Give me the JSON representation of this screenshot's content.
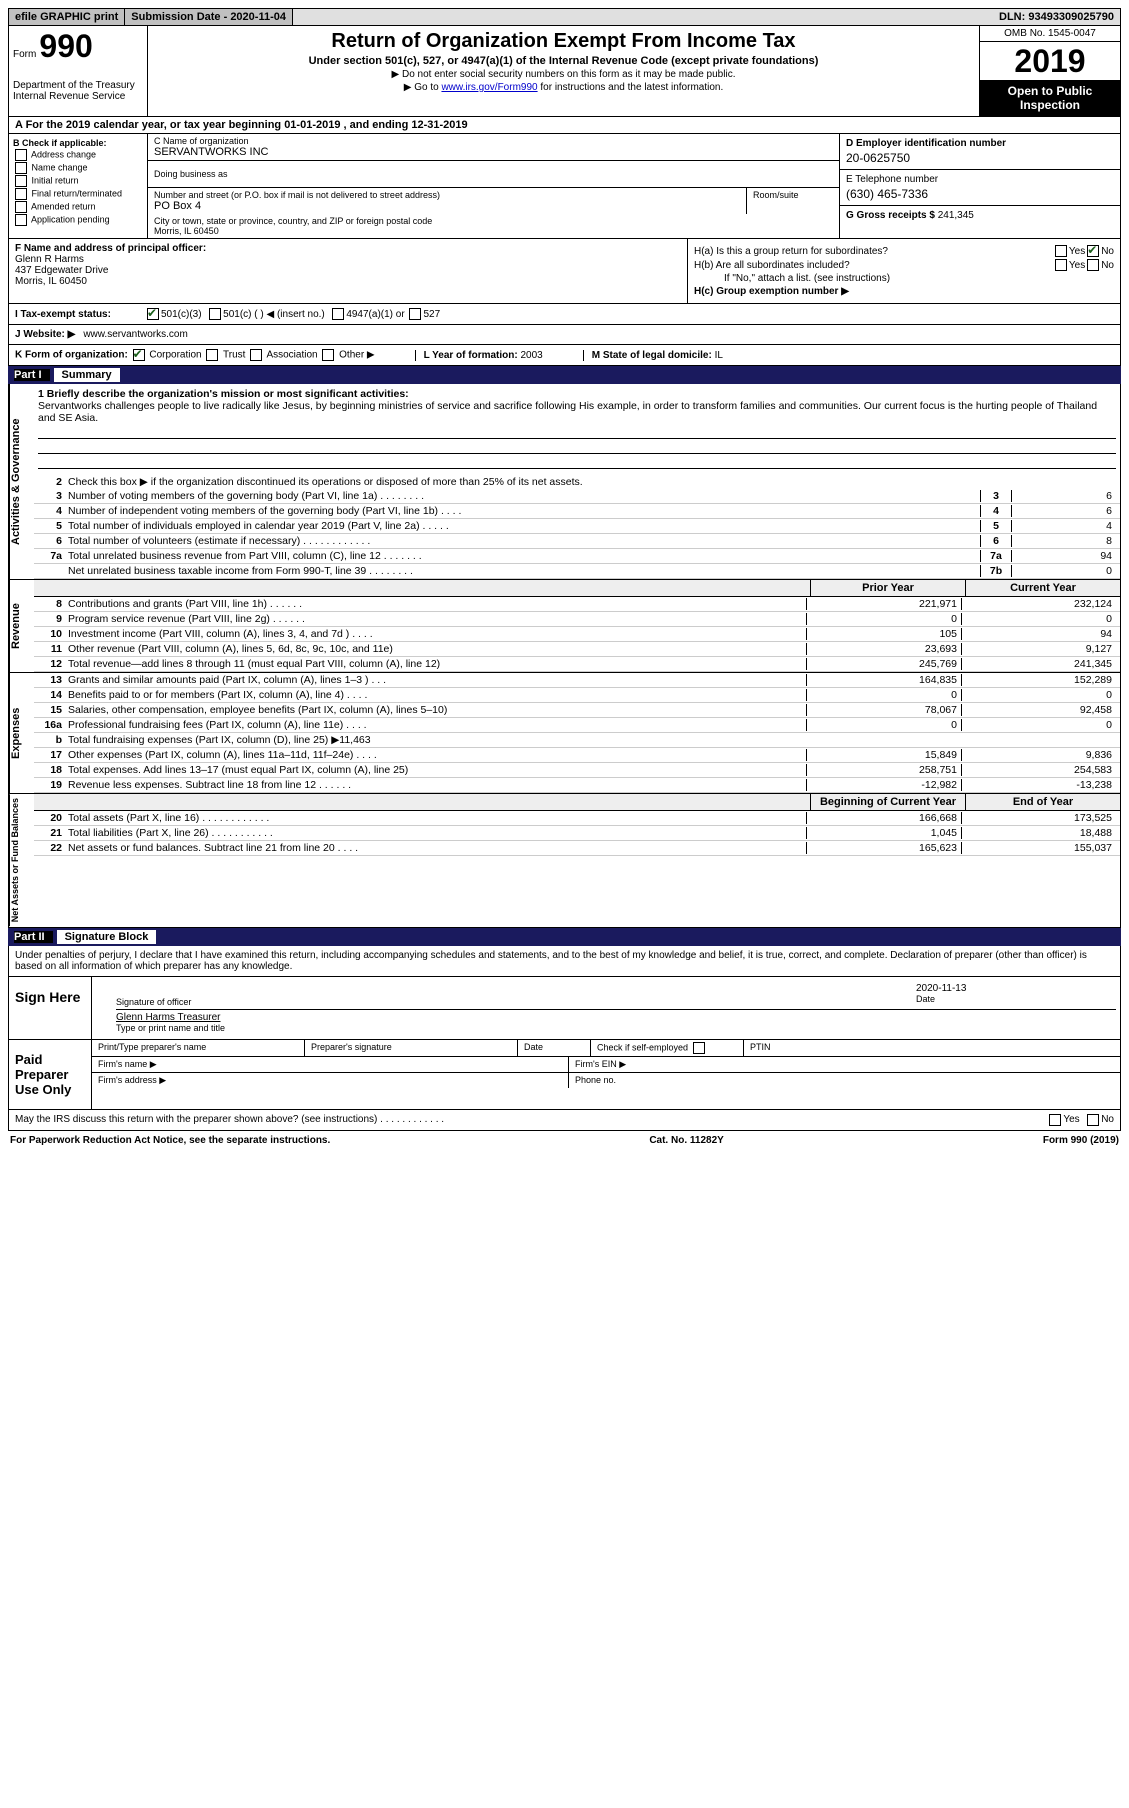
{
  "topbar": {
    "efile": "efile GRAPHIC print",
    "submission_label": "Submission Date - 2020-11-04",
    "dln": "DLN: 93493309025790"
  },
  "header": {
    "form_label": "Form",
    "form_number": "990",
    "dept": "Department of the Treasury\nInternal Revenue Service",
    "title": "Return of Organization Exempt From Income Tax",
    "subtitle": "Under section 501(c), 527, or 4947(a)(1) of the Internal Revenue Code (except private foundations)",
    "note1": "▶ Do not enter social security numbers on this form as it may be made public.",
    "note2_pre": "▶ Go to ",
    "note2_link": "www.irs.gov/Form990",
    "note2_post": " for instructions and the latest information.",
    "omb": "OMB No. 1545-0047",
    "year": "2019",
    "open": "Open to Public Inspection"
  },
  "period": "A For the 2019 calendar year, or tax year beginning 01-01-2019  , and ending 12-31-2019",
  "section_b": {
    "label": "B Check if applicable:",
    "opts": [
      "Address change",
      "Name change",
      "Initial return",
      "Final return/terminated",
      "Amended return",
      "Application pending"
    ]
  },
  "section_c": {
    "name_label": "C Name of organization",
    "name": "SERVANTWORKS INC",
    "dba_label": "Doing business as",
    "street_label": "Number and street (or P.O. box if mail is not delivered to street address)",
    "street": "PO Box 4",
    "room_label": "Room/suite",
    "city_label": "City or town, state or province, country, and ZIP or foreign postal code",
    "city": "Morris, IL  60450"
  },
  "section_d": {
    "ein_label": "D Employer identification number",
    "ein": "20-0625750",
    "phone_label": "E Telephone number",
    "phone": "(630) 465-7336",
    "gross_label": "G Gross receipts $",
    "gross": "241,345"
  },
  "section_f": {
    "label": "F  Name and address of principal officer:",
    "name": "Glenn R Harms",
    "addr1": "437 Edgewater Drive",
    "addr2": "Morris, IL  60450"
  },
  "section_h": {
    "ha_label": "H(a)  Is this a group return for subordinates?",
    "ha_yes": "Yes",
    "ha_no": "No",
    "hb_label": "H(b)  Are all subordinates included?",
    "hb_note": "If \"No,\" attach a list. (see instructions)",
    "hc_label": "H(c)  Group exemption number ▶"
  },
  "status": {
    "i": "I  Tax-exempt status:",
    "c3": "501(c)(3)",
    "c": "501(c) (  )  ◀ (insert no.)",
    "a1": "4947(a)(1) or",
    "s527": "527"
  },
  "website": {
    "label": "J  Website: ▶",
    "val": "www.servantworks.com"
  },
  "k_row": {
    "k": "K Form of organization:",
    "corp": "Corporation",
    "trust": "Trust",
    "assoc": "Association",
    "other": "Other ▶",
    "l_label": "L Year of formation:",
    "l_val": "2003",
    "m_label": "M State of legal domicile:",
    "m_val": "IL"
  },
  "part1": {
    "label": "Part I",
    "title": "Summary",
    "mission_label": "1  Briefly describe the organization's mission or most significant activities:",
    "mission": "Servantworks challenges people to live radically like Jesus, by beginning ministries of service and sacrifice following His example, in order to transform families and communities. Our current focus is the hurting people of Thailand and SE Asia.",
    "line2": "Check this box ▶     if the organization discontinued its operations or disposed of more than 25% of its net assets.",
    "gov_lines": [
      {
        "n": "3",
        "d": "Number of voting members of the governing body (Part VI, line 1a)  .  .  .  .  .  .  .  .",
        "b": "3",
        "v": "6"
      },
      {
        "n": "4",
        "d": "Number of independent voting members of the governing body (Part VI, line 1b)  .  .  .  .",
        "b": "4",
        "v": "6"
      },
      {
        "n": "5",
        "d": "Total number of individuals employed in calendar year 2019 (Part V, line 2a)  .  .  .  .  .",
        "b": "5",
        "v": "4"
      },
      {
        "n": "6",
        "d": "Total number of volunteers (estimate if necessary)  .  .  .  .  .  .  .  .  .  .  .  .",
        "b": "6",
        "v": "8"
      },
      {
        "n": "7a",
        "d": "Total unrelated business revenue from Part VIII, column (C), line 12  .  .  .  .  .  .  .",
        "b": "7a",
        "v": "94"
      },
      {
        "n": "",
        "d": "Net unrelated business taxable income from Form 990-T, line 39  .  .  .  .  .  .  .  .",
        "b": "7b",
        "v": "0"
      }
    ],
    "prior_year": "Prior Year",
    "current_year": "Current Year",
    "revenue_lines": [
      {
        "n": "8",
        "d": "Contributions and grants (Part VIII, line 1h)  .  .  .  .  .  .",
        "p": "221,971",
        "c": "232,124"
      },
      {
        "n": "9",
        "d": "Program service revenue (Part VIII, line 2g)  .  .  .  .  .  .",
        "p": "0",
        "c": "0"
      },
      {
        "n": "10",
        "d": "Investment income (Part VIII, column (A), lines 3, 4, and 7d )  .  .  .  .",
        "p": "105",
        "c": "94"
      },
      {
        "n": "11",
        "d": "Other revenue (Part VIII, column (A), lines 5, 6d, 8c, 9c, 10c, and 11e)",
        "p": "23,693",
        "c": "9,127"
      },
      {
        "n": "12",
        "d": "Total revenue—add lines 8 through 11 (must equal Part VIII, column (A), line 12)",
        "p": "245,769",
        "c": "241,345"
      }
    ],
    "expense_lines": [
      {
        "n": "13",
        "d": "Grants and similar amounts paid (Part IX, column (A), lines 1–3 )  .  .  .",
        "p": "164,835",
        "c": "152,289"
      },
      {
        "n": "14",
        "d": "Benefits paid to or for members (Part IX, column (A), line 4)  .  .  .  .",
        "p": "0",
        "c": "0"
      },
      {
        "n": "15",
        "d": "Salaries, other compensation, employee benefits (Part IX, column (A), lines 5–10)",
        "p": "78,067",
        "c": "92,458"
      },
      {
        "n": "16a",
        "d": "Professional fundraising fees (Part IX, column (A), line 11e)  .  .  .  .",
        "p": "0",
        "c": "0"
      },
      {
        "n": "b",
        "d": "Total fundraising expenses (Part IX, column (D), line 25) ▶11,463",
        "p": "",
        "c": "",
        "shaded": true
      },
      {
        "n": "17",
        "d": "Other expenses (Part IX, column (A), lines 11a–11d, 11f–24e)  .  .  .  .",
        "p": "15,849",
        "c": "9,836"
      },
      {
        "n": "18",
        "d": "Total expenses. Add lines 13–17 (must equal Part IX, column (A), line 25)",
        "p": "258,751",
        "c": "254,583"
      },
      {
        "n": "19",
        "d": "Revenue less expenses. Subtract line 18 from line 12  .  .  .  .  .  .",
        "p": "-12,982",
        "c": "-13,238"
      }
    ],
    "net_header_p": "Beginning of Current Year",
    "net_header_c": "End of Year",
    "net_lines": [
      {
        "n": "20",
        "d": "Total assets (Part X, line 16)  .  .  .  .  .  .  .  .  .  .  .  .",
        "p": "166,668",
        "c": "173,525"
      },
      {
        "n": "21",
        "d": "Total liabilities (Part X, line 26)  .  .  .  .  .  .  .  .  .  .  .",
        "p": "1,045",
        "c": "18,488"
      },
      {
        "n": "22",
        "d": "Net assets or fund balances. Subtract line 21 from line 20  .  .  .  .",
        "p": "165,623",
        "c": "155,037"
      }
    ],
    "vert_gov": "Activities & Governance",
    "vert_rev": "Revenue",
    "vert_exp": "Expenses",
    "vert_net": "Net Assets or Fund Balances"
  },
  "part2": {
    "label": "Part II",
    "title": "Signature Block",
    "decl": "Under penalties of perjury, I declare that I have examined this return, including accompanying schedules and statements, and to the best of my knowledge and belief, it is true, correct, and complete. Declaration of preparer (other than officer) is based on all information of which preparer has any knowledge.",
    "sign_here": "Sign Here",
    "sig_officer": "Signature of officer",
    "sig_date": "2020-11-13",
    "date_label": "Date",
    "officer_name": "Glenn Harms  Treasurer",
    "type_label": "Type or print name and title",
    "paid_label": "Paid Preparer Use Only",
    "prep_name": "Print/Type preparer's name",
    "prep_sig": "Preparer's signature",
    "prep_date": "Date",
    "check_self": "Check       if self-employed",
    "ptin": "PTIN",
    "firm_name": "Firm's name  ▶",
    "firm_ein": "Firm's EIN ▶",
    "firm_addr": "Firm's address ▶",
    "phone": "Phone no.",
    "discuss": "May the IRS discuss this return with the preparer shown above? (see instructions)  .  .  .  .  .  .  .  .  .  .  .  .",
    "yes": "Yes",
    "no": "No"
  },
  "footer": {
    "paperwork": "For Paperwork Reduction Act Notice, see the separate instructions.",
    "cat": "Cat. No. 11282Y",
    "form": "Form 990 (2019)"
  }
}
